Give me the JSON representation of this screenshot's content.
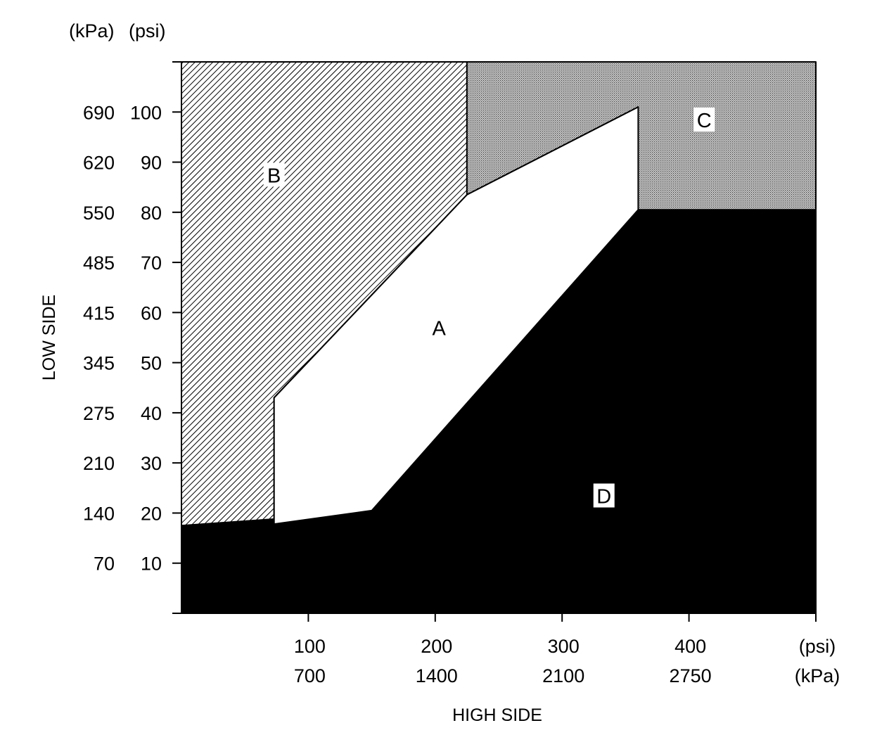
{
  "chart_data": {
    "type": "area",
    "xlabel": "HIGH SIDE",
    "ylabel": "LOW SIDE",
    "x_units": [
      "(psi)",
      "(kPa)"
    ],
    "y_units": [
      "(kPa)",
      "(psi)"
    ],
    "xlim": [
      0,
      500
    ],
    "ylim": [
      0,
      110
    ],
    "x_ticks": [
      {
        "psi": 100,
        "psi_label": "100",
        "kpa_label": "700"
      },
      {
        "psi": 200,
        "psi_label": "200",
        "kpa_label": "1400"
      },
      {
        "psi": 300,
        "psi_label": "300",
        "kpa_label": "2100"
      },
      {
        "psi": 400,
        "psi_label": "400",
        "kpa_label": "2750"
      },
      {
        "psi": 500
      }
    ],
    "y_ticks": [
      {
        "psi": 10,
        "psi_label": "10",
        "kpa_label": "70"
      },
      {
        "psi": 20,
        "psi_label": "20",
        "kpa_label": "140"
      },
      {
        "psi": 30,
        "psi_label": "30",
        "kpa_label": "210"
      },
      {
        "psi": 40,
        "psi_label": "40",
        "kpa_label": "275"
      },
      {
        "psi": 50,
        "psi_label": "50",
        "kpa_label": "345"
      },
      {
        "psi": 60,
        "psi_label": "60",
        "kpa_label": "415"
      },
      {
        "psi": 70,
        "psi_label": "70",
        "kpa_label": "485"
      },
      {
        "psi": 80,
        "psi_label": "80",
        "kpa_label": "550"
      },
      {
        "psi": 90,
        "psi_label": "90",
        "kpa_label": "620"
      },
      {
        "psi": 100,
        "psi_label": "100",
        "kpa_label": "690"
      },
      {
        "psi": 110
      }
    ],
    "regions": [
      {
        "name": "A",
        "fill": "white",
        "points": [
          [
            73,
            17.8
          ],
          [
            73,
            43
          ],
          [
            225,
            83.5
          ],
          [
            225,
            83.5
          ],
          [
            360,
            101
          ],
          [
            360,
            80.5
          ],
          [
            150,
            20.5
          ]
        ]
      },
      {
        "name": "B",
        "fill": "hatch",
        "points": [
          [
            0,
            110
          ],
          [
            0,
            17.5
          ],
          [
            73,
            18.8
          ],
          [
            73,
            43
          ],
          [
            225,
            83.5
          ],
          [
            225,
            110
          ]
        ]
      },
      {
        "name": "C",
        "fill": "dots",
        "points": [
          [
            225,
            110
          ],
          [
            500,
            110
          ],
          [
            500,
            80.5
          ],
          [
            360,
            80.5
          ],
          [
            360,
            101
          ],
          [
            225,
            83.5
          ]
        ]
      },
      {
        "name": "D",
        "fill": "black",
        "points": [
          [
            0,
            0
          ],
          [
            0,
            17.5
          ],
          [
            150,
            20.5
          ],
          [
            360,
            80.5
          ],
          [
            500,
            80.5
          ],
          [
            500,
            0
          ]
        ]
      }
    ],
    "labels": [
      {
        "text": "A",
        "x": 203,
        "y": 57,
        "boxed": false
      },
      {
        "text": "B",
        "x": 73,
        "y": 87.5,
        "boxed": true
      },
      {
        "text": "C",
        "x": 412,
        "y": 98.5,
        "boxed": true
      },
      {
        "text": "D",
        "x": 333,
        "y": 23.5,
        "boxed": true
      }
    ],
    "grid": false,
    "legend": "none",
    "colors": {
      "black": "#000000",
      "white": "#ffffff",
      "hatch": "#000000",
      "dots": "#9a9a9a"
    }
  }
}
